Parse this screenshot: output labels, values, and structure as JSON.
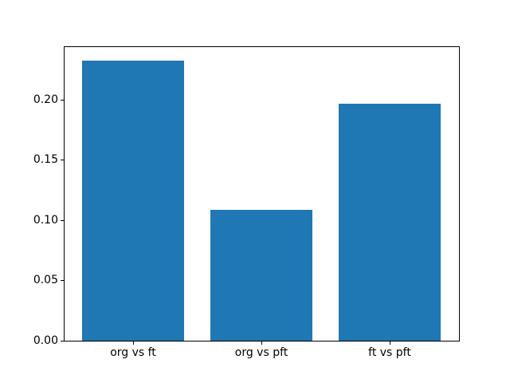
{
  "chart_data": {
    "type": "bar",
    "title": "",
    "xlabel": "",
    "ylabel": "",
    "categories": [
      "org vs ft",
      "org vs pft",
      "ft vs pft"
    ],
    "values": [
      0.2325,
      0.1083,
      0.1967
    ],
    "ylim": [
      0,
      0.2441
    ],
    "yticks": [
      0.0,
      0.05,
      0.1,
      0.15,
      0.2
    ],
    "ytick_labels": [
      "0.00",
      "0.05",
      "0.10",
      "0.15",
      "0.20"
    ],
    "bar_color": "#1f77b4",
    "axis_color": "#000000",
    "background_color": "#ffffff",
    "grid": false,
    "legend": "none"
  }
}
